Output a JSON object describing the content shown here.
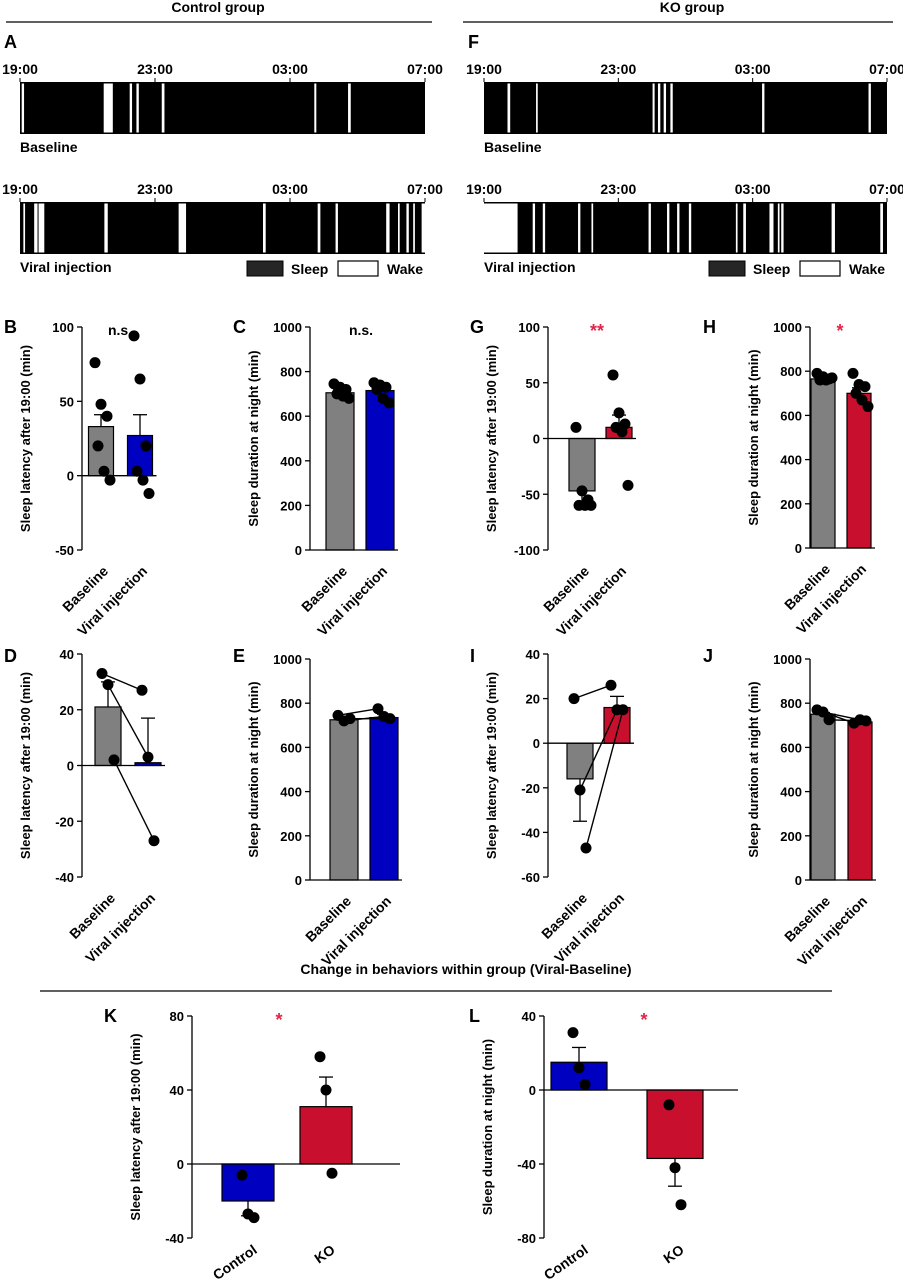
{
  "headers": {
    "control": "Control group",
    "ko": "KO group",
    "change": "Change in behaviors within group (Viral-Baseline)"
  },
  "colors": {
    "sleep": "#000000",
    "wake": "#ffffff",
    "baseline_bar": "#808080",
    "control_viral_bar": "#0000c0",
    "ko_viral_bar": "#c8102e",
    "significance": "#e0254a"
  },
  "hypnograms": {
    "time_labels": [
      "19:00",
      "23:00",
      "03:00",
      "07:00"
    ],
    "legend": {
      "sleep": "Sleep",
      "wake": "Wake"
    },
    "A": {
      "panel_letter": "A",
      "baseline_label": "Baseline",
      "baseline_wake_hours": [
        [
          0.05,
          0.12
        ],
        [
          2.48,
          2.75
        ],
        [
          3.25,
          3.32
        ],
        [
          3.45,
          3.52
        ],
        [
          4.2,
          4.28
        ],
        [
          8.72,
          8.78
        ],
        [
          9.72,
          9.8
        ]
      ],
      "viral_label": "Viral injection",
      "viral_wake_hours": [
        [
          0.1,
          0.15
        ],
        [
          0.42,
          0.52
        ],
        [
          0.55,
          0.72
        ],
        [
          2.5,
          2.6
        ],
        [
          4.7,
          4.92
        ],
        [
          7.2,
          7.28
        ],
        [
          8.82,
          8.9
        ],
        [
          9.35,
          9.42
        ],
        [
          10.85,
          10.95
        ],
        [
          11.2,
          11.25
        ],
        [
          11.45,
          11.52
        ],
        [
          11.65,
          11.7
        ],
        [
          11.9,
          12.0
        ]
      ]
    },
    "F": {
      "panel_letter": "F",
      "baseline_label": "Baseline",
      "baseline_wake_hours": [
        [
          0.7,
          0.78
        ],
        [
          1.55,
          1.6
        ],
        [
          5.02,
          5.08
        ],
        [
          5.18,
          5.25
        ],
        [
          5.35,
          5.42
        ],
        [
          5.55,
          5.62
        ],
        [
          8.28,
          8.35
        ],
        [
          11.45,
          11.52
        ]
      ],
      "viral_label": "Viral injection",
      "viral_wake_hours": [
        [
          0.0,
          1.0
        ],
        [
          1.45,
          1.52
        ],
        [
          1.75,
          1.82
        ],
        [
          2.8,
          2.87
        ],
        [
          3.2,
          3.25
        ],
        [
          4.9,
          4.97
        ],
        [
          5.45,
          5.52
        ],
        [
          5.75,
          5.82
        ],
        [
          6.1,
          6.17
        ],
        [
          7.5,
          7.55
        ],
        [
          7.72,
          7.8
        ],
        [
          8.5,
          8.62
        ],
        [
          8.75,
          8.8
        ],
        [
          8.85,
          8.92
        ],
        [
          10.35,
          10.45
        ],
        [
          11.8,
          11.88
        ]
      ]
    }
  },
  "chart_data": [
    {
      "panel": "B",
      "type": "bar",
      "categories": [
        "Baseline",
        "Viral injection"
      ],
      "values": [
        33,
        27
      ],
      "errors": [
        8,
        14
      ],
      "points": [
        [
          76,
          48,
          40,
          20,
          3,
          -3
        ],
        [
          94,
          65,
          20,
          3,
          -3,
          -12
        ]
      ],
      "ylabel": "Sleep latency after 19:00  (min)",
      "ylim": [
        -50,
        100
      ],
      "yticks": [
        -50,
        0,
        50,
        100
      ],
      "annotation": "n.s."
    },
    {
      "panel": "C",
      "type": "bar",
      "categories": [
        "Baseline",
        "Viral injection"
      ],
      "values": [
        705,
        715
      ],
      "errors": [
        12,
        15
      ],
      "points": [
        [
          745,
          730,
          720,
          700,
          690,
          680
        ],
        [
          750,
          740,
          730,
          720,
          680,
          660
        ]
      ],
      "ylabel": "Sleep duration at night (min)",
      "ylim": [
        0,
        1000
      ],
      "yticks": [
        0,
        200,
        400,
        600,
        800,
        1000
      ],
      "annotation": "n.s."
    },
    {
      "panel": "G",
      "type": "bar",
      "categories": [
        "Baseline",
        "Viral injection"
      ],
      "values": [
        -47,
        10
      ],
      "errors": [
        10,
        11
      ],
      "points": [
        [
          10,
          -47,
          -55,
          -60,
          -60,
          -60
        ],
        [
          57,
          23,
          13,
          10,
          6,
          -42
        ]
      ],
      "ylabel": "Sleep latency after 19:00  (min)",
      "ylim": [
        -100,
        100
      ],
      "yticks": [
        -100,
        -50,
        0,
        50,
        100
      ],
      "annotation": "**"
    },
    {
      "panel": "H",
      "type": "bar",
      "categories": [
        "Baseline",
        "Viral injection"
      ],
      "values": [
        765,
        700
      ],
      "errors": [
        10,
        25
      ],
      "points": [
        [
          790,
          775,
          765,
          760,
          760,
          770
        ],
        [
          790,
          740,
          730,
          700,
          670,
          640
        ]
      ],
      "ylabel": "Sleep duration at night (min)",
      "ylim": [
        0,
        1000
      ],
      "yticks": [
        0,
        200,
        400,
        600,
        800,
        1000
      ],
      "annotation": "*"
    },
    {
      "panel": "D",
      "type": "bar",
      "categories": [
        "Baseline",
        "Viral injection"
      ],
      "values": [
        21,
        1
      ],
      "errors": [
        9,
        16
      ],
      "paired": [
        [
          33,
          27
        ],
        [
          29,
          3
        ],
        [
          2,
          -27
        ]
      ],
      "ylabel": "Sleep latency after 19:00  (min)",
      "ylim": [
        -40,
        40
      ],
      "yticks": [
        -40,
        -20,
        0,
        20,
        40
      ],
      "annotation": ""
    },
    {
      "panel": "E",
      "type": "bar",
      "categories": [
        "Baseline",
        "Viral injection"
      ],
      "values": [
        725,
        735
      ],
      "errors": [
        8,
        15
      ],
      "paired": [
        [
          745,
          775
        ],
        [
          720,
          740
        ],
        [
          730,
          730
        ]
      ],
      "ylabel": "Sleep duration at night (min)",
      "ylim": [
        0,
        1000
      ],
      "yticks": [
        0,
        200,
        400,
        600,
        800,
        1000
      ],
      "annotation": ""
    },
    {
      "panel": "I",
      "type": "bar",
      "categories": [
        "Baseline",
        "Viral injection"
      ],
      "values": [
        -16,
        16
      ],
      "errors": [
        19,
        5
      ],
      "paired": [
        [
          20,
          26
        ],
        [
          -21,
          15
        ],
        [
          -47,
          15
        ]
      ],
      "ylabel": "Sleep latency after 19:00  (min)",
      "ylim": [
        -60,
        40
      ],
      "yticks": [
        -60,
        -40,
        -20,
        0,
        20,
        40
      ],
      "annotation": ""
    },
    {
      "panel": "J",
      "type": "bar",
      "categories": [
        "Baseline",
        "Viral injection"
      ],
      "values": [
        750,
        715
      ],
      "errors": [
        8,
        8
      ],
      "paired": [
        [
          770,
          710
        ],
        [
          760,
          725
        ],
        [
          725,
          720
        ]
      ],
      "ylabel": "Sleep duration at night (min)",
      "ylim": [
        0,
        1000
      ],
      "yticks": [
        0,
        200,
        400,
        600,
        800,
        1000
      ],
      "annotation": ""
    },
    {
      "panel": "K",
      "type": "bar",
      "categories": [
        "Control",
        "KO"
      ],
      "values": [
        -20,
        31
      ],
      "errors": [
        8,
        16
      ],
      "points": [
        [
          -6,
          -27,
          -29
        ],
        [
          58,
          40,
          -5
        ]
      ],
      "ylabel": "Sleep latency after 19:00  (min)",
      "ylim": [
        -40,
        80
      ],
      "yticks": [
        -40,
        0,
        40,
        80
      ],
      "annotation": "*"
    },
    {
      "panel": "L",
      "type": "bar",
      "categories": [
        "Control",
        "KO"
      ],
      "values": [
        15,
        -37
      ],
      "errors": [
        8,
        15
      ],
      "points": [
        [
          31,
          12,
          3
        ],
        [
          -8,
          -42,
          -62
        ]
      ],
      "ylabel": "Sleep duration at night (min)",
      "ylim": [
        -80,
        40
      ],
      "yticks": [
        -80,
        -40,
        0,
        40
      ],
      "annotation": "*"
    }
  ]
}
